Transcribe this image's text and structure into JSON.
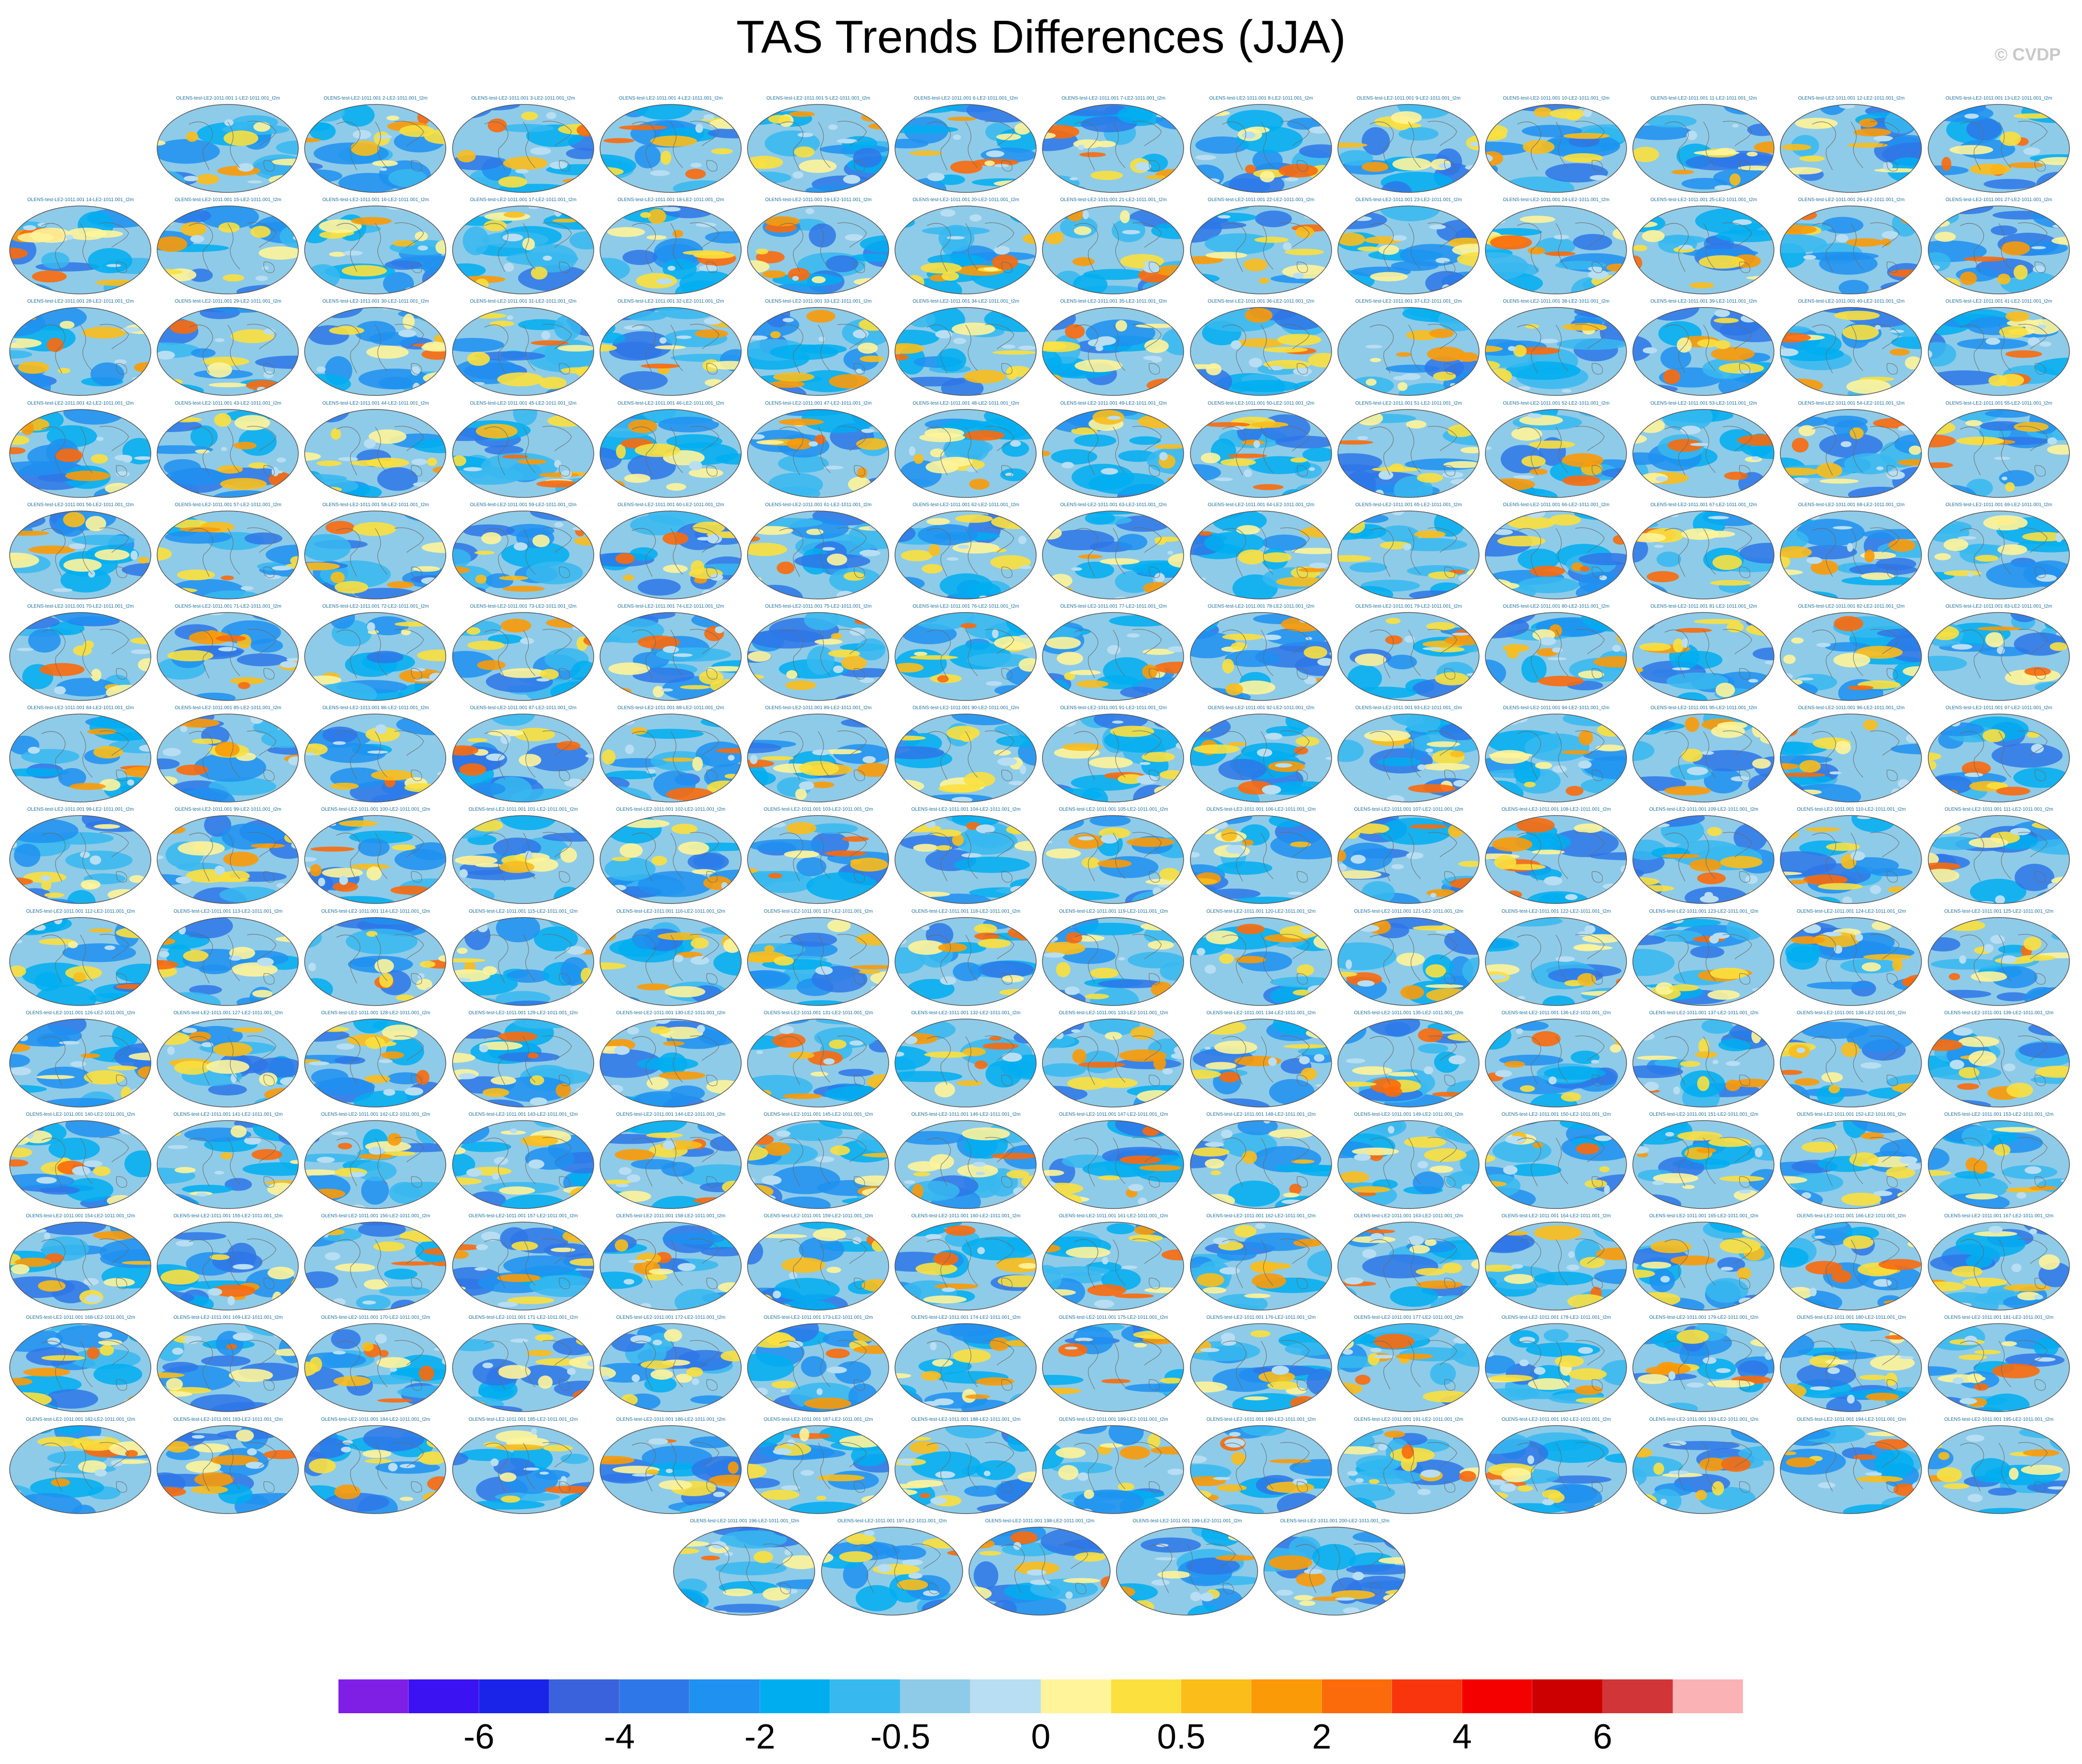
{
  "title": "TAS Trends Differences (JJA)",
  "copyright": "© CVDP",
  "chart_data": {
    "type": "heatmap",
    "title": "TAS Trends Differences (JJA)",
    "subtitle": "",
    "panel_count": 200,
    "panel_title_template": "OLENS-test-LE2-1011.001 {n}-LE2-1011.001_t2m",
    "layout": {
      "columns": 14,
      "rows": 15
    },
    "projection": "robinson",
    "colorbar": {
      "orientation": "horizontal",
      "colors": [
        "#7f1fe6",
        "#3b12f2",
        "#1a23e8",
        "#3a62dd",
        "#2e77e8",
        "#1f91f0",
        "#00aef0",
        "#37b9f0",
        "#8ecbe8",
        "#b8def3",
        "#fff49a",
        "#fbe03e",
        "#fbbd1a",
        "#fb9a07",
        "#fb6a0b",
        "#f8350c",
        "#f40000",
        "#cc0000",
        "#d13538",
        "#fbb2b4"
      ],
      "labels": [
        {
          "text": "-6",
          "boundary": 2
        },
        {
          "text": "-4",
          "boundary": 4
        },
        {
          "text": "-2",
          "boundary": 6
        },
        {
          "text": "-0.5",
          "boundary": 8
        },
        {
          "text": "0",
          "boundary": 10
        },
        {
          "text": "0.5",
          "boundary": 12
        },
        {
          "text": "2",
          "boundary": 14
        },
        {
          "text": "4",
          "boundary": 16
        },
        {
          "text": "6",
          "boundary": 18
        }
      ]
    }
  }
}
